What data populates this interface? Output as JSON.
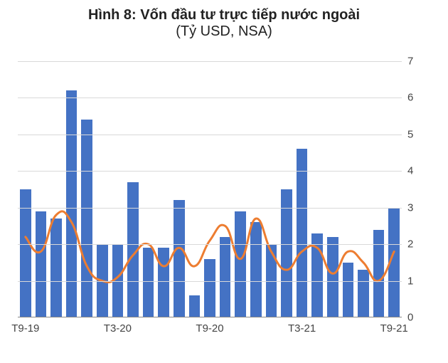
{
  "title": "Hình 8: Vốn đầu tư trực tiếp nước ngoài",
  "subtitle": "(Tỷ USD, NSA)",
  "chart": {
    "type": "bar+line",
    "ylim": [
      0,
      7
    ],
    "ytick_step": 1,
    "yticks": [
      0,
      1,
      2,
      3,
      4,
      5,
      6,
      7
    ],
    "background_color": "#ffffff",
    "grid_color": "#d9d9d9",
    "bar_color": "#4472c4",
    "line_color": "#ed7d31",
    "line_width": 3,
    "bar_gap_ratio": 0.28,
    "label_fontsize": 15,
    "title_fontsize": 20,
    "categories": [
      "T9-19",
      "T10-19",
      "T11-19",
      "T12-19",
      "T1-20",
      "T2-20",
      "T3-20",
      "T4-20",
      "T5-20",
      "T6-20",
      "T7-20",
      "T8-20",
      "T9-20",
      "T10-20",
      "T11-20",
      "T12-20",
      "T1-21",
      "T2-21",
      "T3-21",
      "T4-21",
      "T5-21",
      "T6-21",
      "T7-21",
      "T8-21",
      "T9-21"
    ],
    "x_tick_labels": {
      "0": "T9-19",
      "6": "T3-20",
      "12": "T9-20",
      "18": "T3-21",
      "24": "T9-21"
    },
    "bar_values": [
      3.5,
      2.9,
      2.7,
      6.2,
      5.4,
      2.0,
      2.0,
      3.7,
      1.9,
      1.9,
      3.2,
      0.6,
      1.6,
      2.2,
      2.9,
      2.6,
      2.0,
      3.5,
      4.6,
      2.3,
      2.2,
      1.5,
      1.3,
      2.4,
      3.0
    ],
    "line_values": [
      2.2,
      1.8,
      2.8,
      2.6,
      1.4,
      1.0,
      1.1,
      1.7,
      2.0,
      1.4,
      1.9,
      1.4,
      2.1,
      2.5,
      1.6,
      2.7,
      1.8,
      1.3,
      1.8,
      1.9,
      1.2,
      1.8,
      1.5,
      1.0,
      1.8
    ]
  }
}
